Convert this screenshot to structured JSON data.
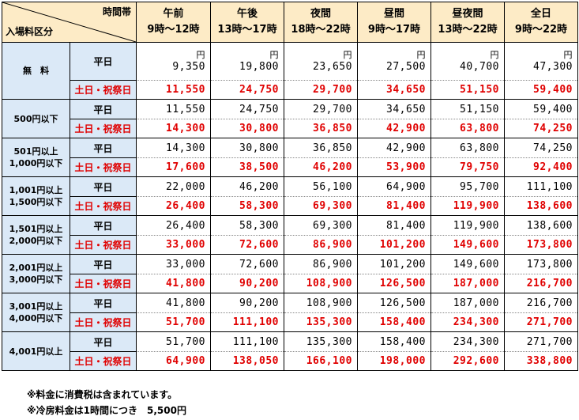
{
  "header": {
    "corner_top": "時間帯",
    "corner_bottom": "入場料区分",
    "columns": [
      {
        "name": "午前",
        "hours": "9時～12時"
      },
      {
        "name": "午後",
        "hours": "13時～17時"
      },
      {
        "name": "夜間",
        "hours": "18時～22時"
      },
      {
        "name": "昼間",
        "hours": "9時～17時"
      },
      {
        "name": "昼夜間",
        "hours": "13時～22時"
      },
      {
        "name": "全日",
        "hours": "9時～22時"
      }
    ]
  },
  "day_labels": {
    "weekday": "平日",
    "holiday": "土日・祝祭日"
  },
  "yen_unit": "円",
  "rows": [
    {
      "category": [
        "無　料"
      ],
      "weekday": [
        "9,350",
        "19,800",
        "23,650",
        "27,500",
        "40,700",
        "47,300"
      ],
      "holiday": [
        "11,550",
        "24,750",
        "29,700",
        "34,650",
        "51,150",
        "59,400"
      ]
    },
    {
      "category": [
        "500円以下"
      ],
      "weekday": [
        "11,550",
        "24,750",
        "29,700",
        "34,650",
        "51,150",
        "59,400"
      ],
      "holiday": [
        "14,300",
        "30,800",
        "36,850",
        "42,900",
        "63,800",
        "74,250"
      ]
    },
    {
      "category": [
        "501円以上",
        "1,000円以下"
      ],
      "weekday": [
        "14,300",
        "30,800",
        "36,850",
        "42,900",
        "63,800",
        "74,250"
      ],
      "holiday": [
        "17,600",
        "38,500",
        "46,200",
        "53,900",
        "79,750",
        "92,400"
      ]
    },
    {
      "category": [
        "1,001円以上",
        "1,500円以下"
      ],
      "weekday": [
        "22,000",
        "46,200",
        "56,100",
        "64,900",
        "95,700",
        "111,100"
      ],
      "holiday": [
        "26,400",
        "58,300",
        "69,300",
        "81,400",
        "119,900",
        "138,600"
      ]
    },
    {
      "category": [
        "1,501円以上",
        "2,000円以下"
      ],
      "weekday": [
        "26,400",
        "58,300",
        "69,300",
        "81,400",
        "119,900",
        "138,600"
      ],
      "holiday": [
        "33,000",
        "72,600",
        "86,900",
        "101,200",
        "149,600",
        "173,800"
      ]
    },
    {
      "category": [
        "2,001円以上",
        "3,000円以下"
      ],
      "weekday": [
        "33,000",
        "72,600",
        "86,900",
        "101,200",
        "149,600",
        "173,800"
      ],
      "holiday": [
        "41,800",
        "90,200",
        "108,900",
        "126,500",
        "187,000",
        "216,700"
      ]
    },
    {
      "category": [
        "3,001円以上",
        "4,000円以下"
      ],
      "weekday": [
        "41,800",
        "90,200",
        "108,900",
        "126,500",
        "187,000",
        "216,700"
      ],
      "holiday": [
        "51,700",
        "111,100",
        "135,300",
        "158,400",
        "234,300",
        "271,700"
      ]
    },
    {
      "category": [
        "4,001円以上"
      ],
      "weekday": [
        "51,700",
        "111,100",
        "135,300",
        "158,400",
        "234,300",
        "271,700"
      ],
      "holiday": [
        "64,900",
        "138,050",
        "166,100",
        "198,000",
        "292,600",
        "338,800"
      ]
    }
  ],
  "notes": [
    "※料金に消費税は含まれています。",
    "※冷房料金は1時間につき　5,500円"
  ]
}
